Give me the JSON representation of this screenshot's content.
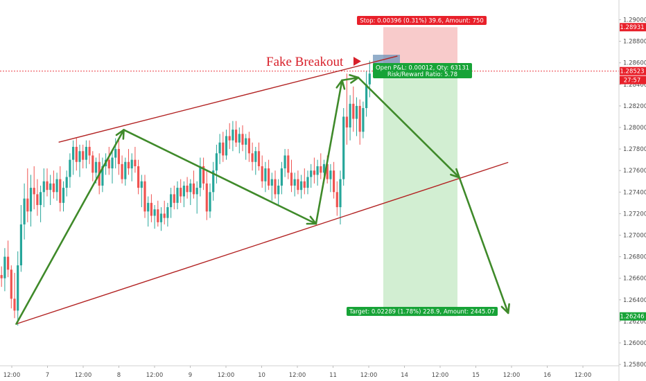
{
  "chart_data": {
    "type": "candlestick",
    "y_axis": {
      "ticks": [
        "1.29000",
        "1.28800",
        "1.28600",
        "1.28400",
        "1.28200",
        "1.28000",
        "1.27800",
        "1.27600",
        "1.27400",
        "1.27200",
        "1.27000",
        "1.26800",
        "1.26600",
        "1.26400",
        "1.26200",
        "1.26000",
        "1.25800"
      ],
      "range": [
        1.2565,
        1.2915
      ],
      "badges": [
        {
          "label": "1.28931",
          "color": "#e8202a",
          "value": 1.28931
        },
        {
          "label": "1.28523",
          "color": "#e8202a",
          "value": 1.28523
        },
        {
          "label": "27:57",
          "color": "#e8202a",
          "value": 1.2844
        },
        {
          "label": "1.26246",
          "color": "#17a337",
          "value": 1.26246
        }
      ]
    },
    "x_axis": {
      "ticks": [
        "12:00",
        "7",
        "12:00",
        "8",
        "12:00",
        "9",
        "12:00",
        "10",
        "12:00",
        "11",
        "12:00",
        "14",
        "12:00",
        "15",
        "12:00",
        "16",
        "12:00"
      ]
    },
    "current_price": 1.28523,
    "annotation": {
      "text": "Fake Breakout",
      "color": "#d8202a"
    },
    "stop_box": {
      "label": "Stop: 0.00396 (0.31%) 39.6, Amount: 750",
      "color": "#e8202a"
    },
    "pnl_box": {
      "line1": "Open P&L: 0.00012, Qty: 63131",
      "line2": "Risk/Reward Ratio: 5.78",
      "color": "#17a337"
    },
    "target_box": {
      "label": "Target: 0.02289 (1.78%) 228.9, Amount: 2445.07",
      "color": "#17a337"
    },
    "position": {
      "entry": 1.28535,
      "stop": 1.28931,
      "target": 1.26246
    },
    "channel_lines": [
      {
        "name": "upper",
        "color": "#b22222",
        "from": {
          "bar": 18,
          "price": 1.27863
        },
        "to": {
          "bar": 122,
          "price": 1.28663
        }
      },
      {
        "name": "lower",
        "color": "#b22222",
        "from": {
          "bar": 5,
          "price": 1.26176
        },
        "to": {
          "bar": 156,
          "price": 1.27676
        }
      }
    ],
    "arrows_color": "#3f8a2a",
    "zigzag": [
      {
        "bar": 5,
        "price": 1.26176
      },
      {
        "bar": 38,
        "price": 1.27978
      },
      {
        "bar": 97,
        "price": 1.27106
      },
      {
        "bar": 105,
        "price": 1.28438
      },
      {
        "bar": 110,
        "price": 1.28463
      },
      {
        "bar": 141,
        "price": 1.27535
      },
      {
        "bar": 156,
        "price": 1.26277
      }
    ],
    "candle_colors": {
      "up": "#26a69a",
      "down": "#ef5350"
    },
    "candles": [
      [
        1.2663,
        1.2671,
        1.2652,
        1.266
      ],
      [
        1.266,
        1.2688,
        1.2648,
        1.268
      ],
      [
        1.268,
        1.2695,
        1.2661,
        1.2668
      ],
      [
        1.2668,
        1.2672,
        1.2632,
        1.2641
      ],
      [
        1.2641,
        1.2665,
        1.2623,
        1.263
      ],
      [
        1.263,
        1.2685,
        1.2616,
        1.2672
      ],
      [
        1.2672,
        1.2728,
        1.2666,
        1.271
      ],
      [
        1.271,
        1.2748,
        1.2696,
        1.2734
      ],
      [
        1.2734,
        1.2762,
        1.2712,
        1.2722
      ],
      [
        1.2722,
        1.2756,
        1.2708,
        1.2744
      ],
      [
        1.2744,
        1.2764,
        1.2724,
        1.2738
      ],
      [
        1.2738,
        1.2752,
        1.2718,
        1.2728
      ],
      [
        1.2728,
        1.2746,
        1.2712,
        1.274
      ],
      [
        1.274,
        1.2762,
        1.2726,
        1.275
      ],
      [
        1.275,
        1.2762,
        1.2736,
        1.2742
      ],
      [
        1.2742,
        1.2756,
        1.2728,
        1.2748
      ],
      [
        1.2748,
        1.276,
        1.2734,
        1.274
      ],
      [
        1.274,
        1.2758,
        1.2732,
        1.2752
      ],
      [
        1.2752,
        1.2764,
        1.2722,
        1.273
      ],
      [
        1.273,
        1.275,
        1.2722,
        1.2744
      ],
      [
        1.2744,
        1.276,
        1.2736,
        1.2754
      ],
      [
        1.2754,
        1.2776,
        1.2744,
        1.277
      ],
      [
        1.277,
        1.2788,
        1.2756,
        1.2782
      ],
      [
        1.2782,
        1.279,
        1.276,
        1.2768
      ],
      [
        1.2768,
        1.2784,
        1.2754,
        1.2778
      ],
      [
        1.2778,
        1.2784,
        1.2762,
        1.277
      ],
      [
        1.277,
        1.2788,
        1.2762,
        1.2782
      ],
      [
        1.2782,
        1.2788,
        1.2766,
        1.2774
      ],
      [
        1.2774,
        1.2778,
        1.275,
        1.2758
      ],
      [
        1.2758,
        1.2772,
        1.2748,
        1.2768
      ],
      [
        1.2768,
        1.2776,
        1.2738,
        1.2746
      ],
      [
        1.2746,
        1.2772,
        1.274,
        1.2764
      ],
      [
        1.2764,
        1.2776,
        1.2756,
        1.277
      ],
      [
        1.277,
        1.2782,
        1.2756,
        1.2762
      ],
      [
        1.2762,
        1.2778,
        1.2748,
        1.2772
      ],
      [
        1.2772,
        1.279,
        1.2762,
        1.278
      ],
      [
        1.278,
        1.279,
        1.2756,
        1.2766
      ],
      [
        1.2766,
        1.2774,
        1.2748,
        1.2752
      ],
      [
        1.2752,
        1.2772,
        1.2746,
        1.2768
      ],
      [
        1.2768,
        1.278,
        1.2756,
        1.2762
      ],
      [
        1.2762,
        1.2776,
        1.275,
        1.277
      ],
      [
        1.277,
        1.2782,
        1.2758,
        1.2764
      ],
      [
        1.2764,
        1.277,
        1.2738,
        1.2744
      ],
      [
        1.2744,
        1.2756,
        1.2726,
        1.275
      ],
      [
        1.275,
        1.2756,
        1.2716,
        1.2722
      ],
      [
        1.2722,
        1.2736,
        1.2708,
        1.273
      ],
      [
        1.273,
        1.2738,
        1.2712,
        1.2718
      ],
      [
        1.2718,
        1.2728,
        1.2706,
        1.2724
      ],
      [
        1.2724,
        1.2732,
        1.2708,
        1.2712
      ],
      [
        1.2712,
        1.2726,
        1.2704,
        1.272
      ],
      [
        1.272,
        1.2732,
        1.271,
        1.2716
      ],
      [
        1.2716,
        1.273,
        1.2708,
        1.2726
      ],
      [
        1.2726,
        1.2744,
        1.2716,
        1.2738
      ],
      [
        1.2738,
        1.2746,
        1.2724,
        1.273
      ],
      [
        1.273,
        1.275,
        1.2724,
        1.2744
      ],
      [
        1.2744,
        1.2752,
        1.273,
        1.2736
      ],
      [
        1.2736,
        1.275,
        1.2726,
        1.2746
      ],
      [
        1.2746,
        1.2754,
        1.2734,
        1.274
      ],
      [
        1.274,
        1.2752,
        1.2728,
        1.2748
      ],
      [
        1.2748,
        1.276,
        1.2734,
        1.2738
      ],
      [
        1.2738,
        1.275,
        1.272,
        1.2744
      ],
      [
        1.2744,
        1.2772,
        1.2736,
        1.2764
      ],
      [
        1.2764,
        1.2772,
        1.2742,
        1.2748
      ],
      [
        1.2748,
        1.276,
        1.2714,
        1.2722
      ],
      [
        1.2722,
        1.2748,
        1.2716,
        1.274
      ],
      [
        1.274,
        1.2768,
        1.2732,
        1.276
      ],
      [
        1.276,
        1.2784,
        1.2748,
        1.2776
      ],
      [
        1.2776,
        1.2794,
        1.2766,
        1.2786
      ],
      [
        1.2786,
        1.2796,
        1.2768,
        1.2774
      ],
      [
        1.2774,
        1.2798,
        1.277,
        1.2792
      ],
      [
        1.2792,
        1.2804,
        1.278,
        1.2788
      ],
      [
        1.2788,
        1.2806,
        1.2778,
        1.2798
      ],
      [
        1.2798,
        1.2806,
        1.2782,
        1.2786
      ],
      [
        1.2786,
        1.28,
        1.2776,
        1.2794
      ],
      [
        1.2794,
        1.2802,
        1.2778,
        1.2784
      ],
      [
        1.2784,
        1.2794,
        1.277,
        1.279
      ],
      [
        1.279,
        1.2796,
        1.2768,
        1.2776
      ],
      [
        1.2776,
        1.2786,
        1.276,
        1.2768
      ],
      [
        1.2768,
        1.2782,
        1.2756,
        1.2778
      ],
      [
        1.2778,
        1.2786,
        1.276,
        1.2764
      ],
      [
        1.2764,
        1.2774,
        1.2744,
        1.275
      ],
      [
        1.275,
        1.2768,
        1.274,
        1.2762
      ],
      [
        1.2762,
        1.277,
        1.2742,
        1.2746
      ],
      [
        1.2746,
        1.2758,
        1.2732,
        1.2752
      ],
      [
        1.2752,
        1.276,
        1.2734,
        1.2738
      ],
      [
        1.2738,
        1.2752,
        1.2728,
        1.2746
      ],
      [
        1.2746,
        1.2768,
        1.2738,
        1.2762
      ],
      [
        1.2762,
        1.278,
        1.2754,
        1.2774
      ],
      [
        1.2774,
        1.278,
        1.2752,
        1.2758
      ],
      [
        1.2758,
        1.277,
        1.274,
        1.2746
      ],
      [
        1.2746,
        1.2758,
        1.2736,
        1.2752
      ],
      [
        1.2752,
        1.276,
        1.2738,
        1.2742
      ],
      [
        1.2742,
        1.2756,
        1.2734,
        1.275
      ],
      [
        1.275,
        1.2762,
        1.2738,
        1.2744
      ],
      [
        1.2744,
        1.276,
        1.2738,
        1.2754
      ],
      [
        1.2754,
        1.2766,
        1.2744,
        1.276
      ],
      [
        1.276,
        1.2772,
        1.2748,
        1.2756
      ],
      [
        1.2756,
        1.277,
        1.2746,
        1.2764
      ],
      [
        1.2764,
        1.2776,
        1.2752,
        1.2758
      ],
      [
        1.2758,
        1.277,
        1.275,
        1.2766
      ],
      [
        1.2766,
        1.2774,
        1.2748,
        1.2752
      ],
      [
        1.2752,
        1.2766,
        1.274,
        1.276
      ],
      [
        1.276,
        1.2768,
        1.2734,
        1.274
      ],
      [
        1.274,
        1.275,
        1.2718,
        1.2726
      ],
      [
        1.2726,
        1.276,
        1.271,
        1.2752
      ],
      [
        1.2752,
        1.2818,
        1.2746,
        1.281
      ],
      [
        1.281,
        1.285,
        1.2784,
        1.28
      ],
      [
        1.28,
        1.283,
        1.2788,
        1.2822
      ],
      [
        1.2822,
        1.2838,
        1.2796,
        1.2808
      ],
      [
        1.2808,
        1.2828,
        1.2792,
        1.282
      ],
      [
        1.282,
        1.2826,
        1.2784,
        1.2796
      ],
      [
        1.2796,
        1.2824,
        1.279,
        1.2818
      ],
      [
        1.2818,
        1.2852,
        1.281,
        1.284
      ],
      [
        1.284,
        1.2862,
        1.2828,
        1.285
      ]
    ]
  }
}
